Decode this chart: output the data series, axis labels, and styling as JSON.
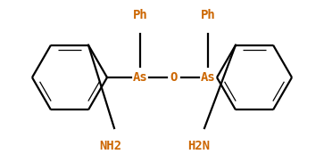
{
  "bg_color": "#ffffff",
  "bond_color": "#000000",
  "text_color": "#cc6600",
  "figsize": [
    3.63,
    1.73
  ],
  "dpi": 100,
  "As1_label": "As",
  "As2_label": "As",
  "O_label": "O",
  "Ph1_label": "Ph",
  "Ph2_label": "Ph",
  "NH2_left_label": "NH2",
  "NH2_right_label": "H2N",
  "lw": 1.6,
  "lw_double": 0.9,
  "font_size": 10,
  "font_size_ph": 10
}
